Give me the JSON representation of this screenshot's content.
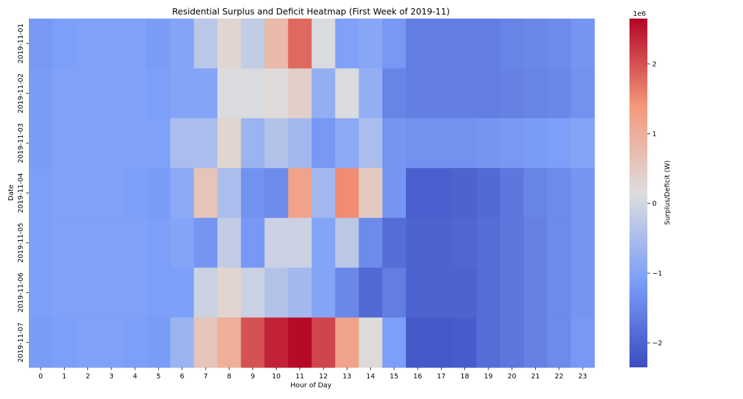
{
  "chart_data": {
    "type": "heatmap",
    "title": "Residential Surplus and Deficit Heatmap (First Week of 2019-11)",
    "xlabel": "Hour of Day",
    "ylabel": "Date",
    "x_categories": [
      "0",
      "1",
      "2",
      "3",
      "4",
      "5",
      "6",
      "7",
      "8",
      "9",
      "10",
      "11",
      "12",
      "13",
      "14",
      "15",
      "16",
      "17",
      "18",
      "19",
      "20",
      "21",
      "22",
      "23"
    ],
    "y_categories": [
      "2019-11-01",
      "2019-11-02",
      "2019-11-03",
      "2019-11-04",
      "2019-11-05",
      "2019-11-06",
      "2019-11-07"
    ],
    "values": [
      [
        -1.2,
        -1.1,
        -1.05,
        -1.05,
        -1.05,
        -1.15,
        -1.0,
        -0.3,
        0.3,
        -0.2,
        0.8,
        1.8,
        0.1,
        -1.05,
        -0.95,
        -1.2,
        -1.6,
        -1.6,
        -1.6,
        -1.6,
        -1.5,
        -1.45,
        -1.4,
        -1.25
      ],
      [
        -1.15,
        -1.05,
        -1.05,
        -1.05,
        -1.05,
        -1.1,
        -1.0,
        -1.0,
        0.1,
        0.1,
        0.2,
        0.4,
        -0.8,
        0.1,
        -0.8,
        -1.5,
        -1.6,
        -1.6,
        -1.6,
        -1.6,
        -1.55,
        -1.5,
        -1.45,
        -1.3
      ],
      [
        -1.15,
        -1.05,
        -1.05,
        -1.05,
        -1.05,
        -1.05,
        -0.5,
        -0.5,
        0.3,
        -0.7,
        -0.4,
        -0.6,
        -1.2,
        -0.9,
        -0.5,
        -1.25,
        -1.3,
        -1.3,
        -1.3,
        -1.25,
        -1.2,
        -1.15,
        -1.1,
        -1.0
      ],
      [
        -1.1,
        -1.05,
        -1.05,
        -1.05,
        -1.1,
        -1.15,
        -0.9,
        0.6,
        -0.5,
        -1.3,
        -1.4,
        1.2,
        -0.6,
        1.5,
        0.5,
        -1.25,
        -2.05,
        -2.05,
        -2.0,
        -1.9,
        -1.7,
        -1.5,
        -1.4,
        -1.25
      ],
      [
        -1.1,
        -1.05,
        -1.05,
        -1.05,
        -1.05,
        -1.1,
        -1.0,
        -1.25,
        -0.2,
        -1.2,
        -0.1,
        -0.1,
        -1.0,
        -0.3,
        -1.4,
        -1.85,
        -2.0,
        -2.0,
        -1.95,
        -1.85,
        -1.7,
        -1.55,
        -1.4,
        -1.25
      ],
      [
        -1.1,
        -1.05,
        -1.05,
        -1.05,
        -1.05,
        -1.1,
        -1.1,
        -0.1,
        0.3,
        -0.1,
        -0.4,
        -0.6,
        -1.0,
        -1.45,
        -1.9,
        -1.6,
        -2.0,
        -2.0,
        -2.0,
        -1.85,
        -1.7,
        -1.55,
        -1.4,
        -1.25
      ],
      [
        -1.15,
        -1.1,
        -1.05,
        -1.05,
        -1.1,
        -1.15,
        -0.7,
        0.6,
        1.0,
        2.0,
        2.4,
        2.6,
        2.1,
        1.2,
        0.2,
        -1.1,
        -2.15,
        -2.15,
        -2.1,
        -1.85,
        -1.7,
        -1.55,
        -1.4,
        -1.2
      ]
    ],
    "value_range": [
      -2.35,
      2.65
    ],
    "colormap": "coolwarm",
    "colorbar": {
      "label": "Surplus/Deficit (W)",
      "offset_text": "1e6",
      "ticks": [
        -2,
        -1,
        0,
        1,
        2
      ],
      "tick_labels": [
        "−2",
        "−1",
        "0",
        "1",
        "2"
      ]
    },
    "grid": false
  }
}
